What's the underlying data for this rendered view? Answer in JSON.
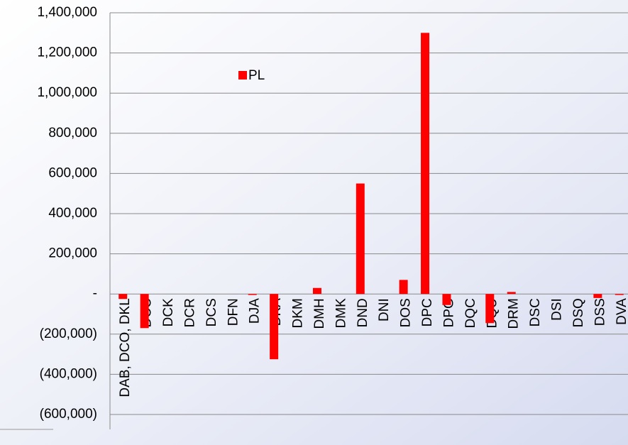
{
  "chart_data": {
    "type": "bar",
    "categories": [
      "DAB, DCO, DKL",
      "DCC",
      "DCK",
      "DCR",
      "DCS",
      "DFN",
      "DJA",
      "DKA",
      "DKM",
      "DMH",
      "DMK",
      "DND",
      "DNI",
      "DOS",
      "DPC",
      "DPG",
      "DQC",
      "DQU",
      "DRM",
      "DSC",
      "DSI",
      "DSQ",
      "DSS",
      "DVA"
    ],
    "series": [
      {
        "name": "PL",
        "color": "#ff0000",
        "values": [
          -25000,
          -170000,
          0,
          0,
          0,
          0,
          -5000,
          -325000,
          0,
          30000,
          0,
          550000,
          0,
          70000,
          1300000,
          -55000,
          0,
          -145000,
          10000,
          0,
          0,
          0,
          -20000,
          -5000
        ]
      }
    ],
    "ylim": [
      -600000,
      1400000
    ],
    "yticks": [
      {
        "value": -600000,
        "label": "(600,000)"
      },
      {
        "value": -400000,
        "label": "(400,000)"
      },
      {
        "value": -200000,
        "label": "(200,000)"
      },
      {
        "value": 0,
        "label": "-"
      },
      {
        "value": 200000,
        "label": "200,000"
      },
      {
        "value": 400000,
        "label": "400,000"
      },
      {
        "value": 600000,
        "label": "600,000"
      },
      {
        "value": 800000,
        "label": "800,000"
      },
      {
        "value": 1000000,
        "label": "1,000,000"
      },
      {
        "value": 1200000,
        "label": "1,200,000"
      },
      {
        "value": 1400000,
        "label": "1,400,000"
      }
    ],
    "grid": true,
    "legend": "top"
  }
}
